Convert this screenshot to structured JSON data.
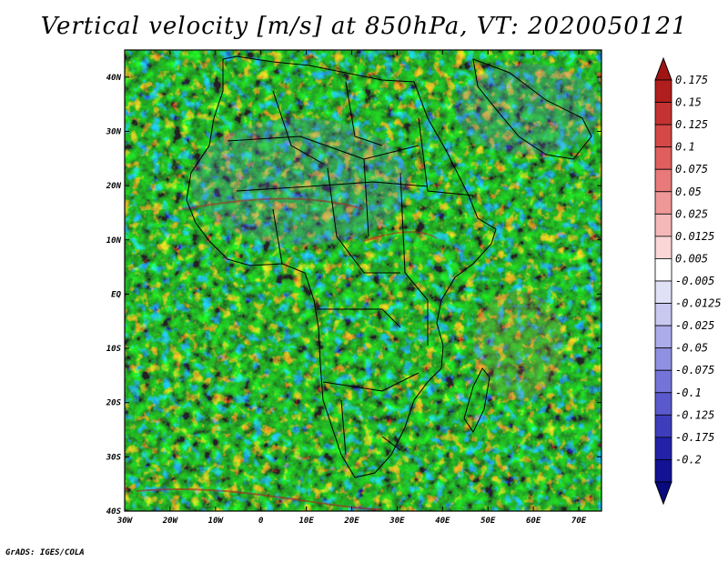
{
  "title": "Vertical velocity [m/s] at 850hPa, VT: 2020050121",
  "credit": "GrADS: IGES/COLA",
  "map": {
    "lon_range": [
      -30,
      75
    ],
    "lat_range": [
      -40,
      45
    ],
    "x_ticks": [
      {
        "value": -30,
        "label": "30W"
      },
      {
        "value": -20,
        "label": "20W"
      },
      {
        "value": -10,
        "label": "10W"
      },
      {
        "value": 0,
        "label": "0"
      },
      {
        "value": 10,
        "label": "10E"
      },
      {
        "value": 20,
        "label": "20E"
      },
      {
        "value": 30,
        "label": "30E"
      },
      {
        "value": 40,
        "label": "40E"
      },
      {
        "value": 50,
        "label": "50E"
      },
      {
        "value": 60,
        "label": "60E"
      },
      {
        "value": 70,
        "label": "70E"
      }
    ],
    "y_ticks": [
      {
        "value": 40,
        "label": "40N"
      },
      {
        "value": 30,
        "label": "30N"
      },
      {
        "value": 20,
        "label": "20N"
      },
      {
        "value": 10,
        "label": "10N"
      },
      {
        "value": 0,
        "label": "EQ"
      },
      {
        "value": -10,
        "label": "10S"
      },
      {
        "value": -20,
        "label": "20S"
      },
      {
        "value": -30,
        "label": "30S"
      },
      {
        "value": -40,
        "label": "40S"
      }
    ]
  },
  "colorbar": {
    "labels": [
      "0.175",
      "0.15",
      "0.125",
      "0.1",
      "0.075",
      "0.05",
      "0.025",
      "0.0125",
      "0.005",
      "-0.005",
      "-0.0125",
      "-0.025",
      "-0.05",
      "-0.075",
      "-0.1",
      "-0.125",
      "-0.175",
      "-0.2"
    ],
    "colors": [
      "#b01e1e",
      "#c43232",
      "#d44848",
      "#e05e5e",
      "#e87a7a",
      "#ef9898",
      "#f5b8b8",
      "#fad6d6",
      "#ffffff",
      "#e0e0f6",
      "#c8c8f0",
      "#acacea",
      "#9090e2",
      "#7474d8",
      "#5a5acc",
      "#3e3ebc",
      "#2222a8",
      "#121294"
    ],
    "top_arrow_color": "#a01414",
    "bottom_arrow_color": "#0a0a80"
  }
}
